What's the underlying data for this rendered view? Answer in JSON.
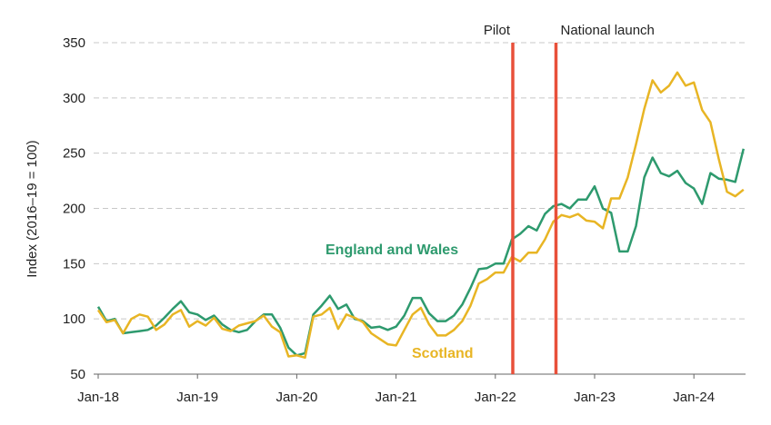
{
  "chart_data": {
    "type": "line",
    "ylabel": "Index (2016–19 = 100)",
    "ylim": [
      50,
      350
    ],
    "yticks": [
      50,
      100,
      150,
      200,
      250,
      300,
      350
    ],
    "xticks": [
      "Jan-18",
      "Jan-19",
      "Jan-20",
      "Jan-21",
      "Jan-22",
      "Jan-23",
      "Jan-24"
    ],
    "grid": true,
    "x_start": "Jan-18",
    "x_frequency": "monthly",
    "annotations": [
      {
        "label": "Pilot",
        "x": "Mar-22"
      },
      {
        "label": "National launch",
        "x": "Aug-22"
      }
    ],
    "series": [
      {
        "name": "England and Wales",
        "color": "#2e9a6e",
        "values": [
          111,
          98,
          100,
          87,
          88,
          89,
          90,
          94,
          101,
          109,
          116,
          106,
          104,
          99,
          103,
          95,
          90,
          88,
          90,
          98,
          104,
          104,
          92,
          74,
          67,
          69,
          104,
          112,
          121,
          109,
          113,
          100,
          98,
          92,
          93,
          90,
          93,
          103,
          119,
          119,
          105,
          98,
          98,
          103,
          113,
          128,
          145,
          146,
          150,
          150,
          172,
          177,
          184,
          180,
          195,
          202,
          204,
          200,
          208,
          208,
          220,
          200,
          196,
          161,
          161,
          184,
          228,
          246,
          232,
          229,
          234,
          223,
          218,
          204,
          232,
          227,
          226,
          224,
          254
        ]
      },
      {
        "name": "Scotland",
        "color": "#e8b524",
        "values": [
          108,
          97,
          99,
          87,
          100,
          104,
          102,
          90,
          95,
          104,
          108,
          93,
          98,
          94,
          101,
          91,
          89,
          94,
          96,
          98,
          103,
          93,
          88,
          66,
          67,
          65,
          102,
          104,
          110,
          91,
          104,
          101,
          97,
          87,
          82,
          77,
          76,
          90,
          104,
          110,
          95,
          85,
          85,
          90,
          98,
          112,
          132,
          136,
          142,
          142,
          156,
          152,
          160,
          160,
          172,
          188,
          194,
          192,
          195,
          189,
          188,
          182,
          209,
          209,
          228,
          258,
          290,
          316,
          305,
          311,
          323,
          311,
          314,
          289,
          278,
          245,
          215,
          211,
          217
        ]
      }
    ]
  }
}
